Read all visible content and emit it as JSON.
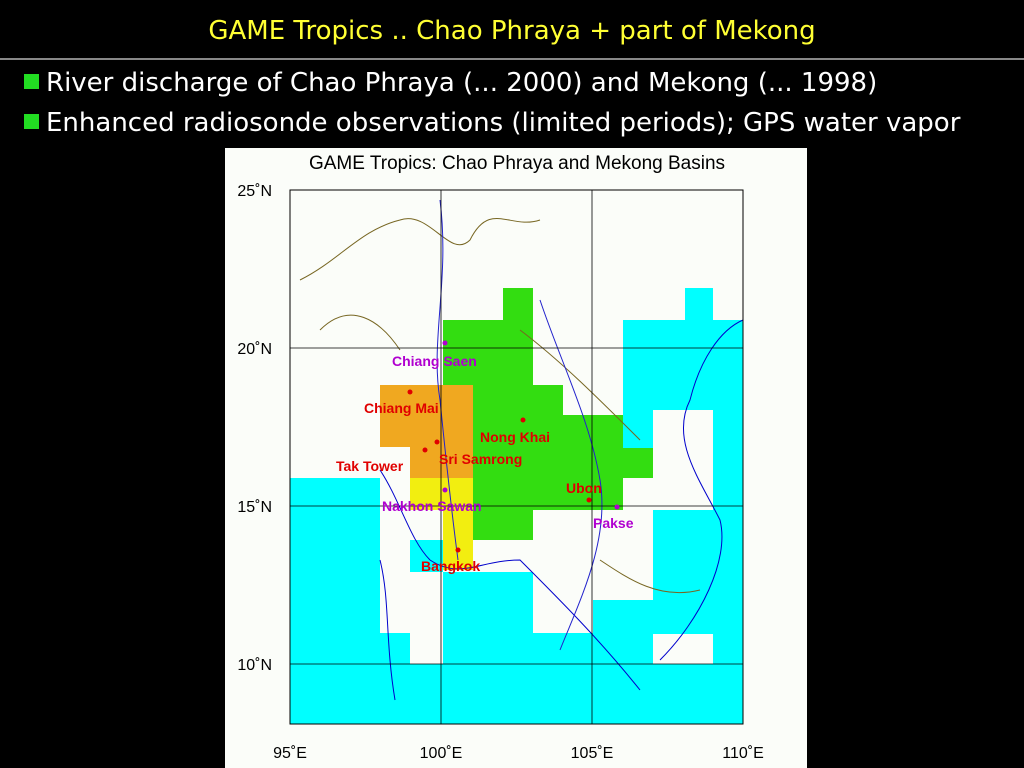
{
  "header": {
    "title": "GAME Tropics .. Chao Phraya + part of Mekong"
  },
  "bullets": [
    "River discharge of Chao Phraya (... 2000) and Mekong (... 1998)",
    "Enhanced radiosonde observations (limited periods);  GPS water vapor"
  ],
  "map": {
    "title": "GAME Tropics: Chao Phraya and Mekong Basins",
    "lon_ticks": [
      {
        "value": 95,
        "label": "95˚E"
      },
      {
        "value": 100,
        "label": "100˚E"
      },
      {
        "value": 105,
        "label": "105˚E"
      },
      {
        "value": 110,
        "label": "110˚E"
      }
    ],
    "lat_ticks": [
      {
        "value": 25,
        "label": "25˚N"
      },
      {
        "value": 20,
        "label": "20˚N"
      },
      {
        "value": 15,
        "label": "15˚N"
      },
      {
        "value": 10,
        "label": "10˚N"
      }
    ],
    "places": [
      "Chiang Saen",
      "Chiang Mai",
      "Nong Khai",
      "Sri Samrong",
      "Tak Tower",
      "Ubon",
      "Nakhon Sawan",
      "Pakse",
      "Bangkok"
    ]
  }
}
